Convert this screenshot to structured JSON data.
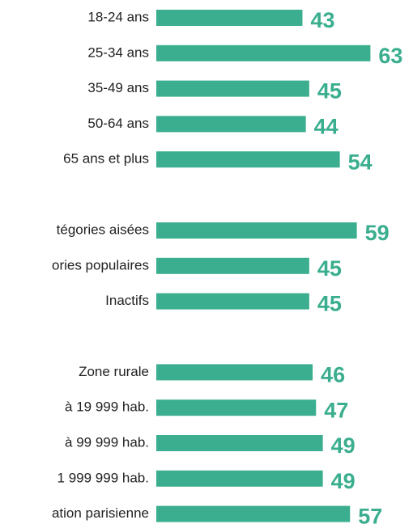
{
  "chart_data": {
    "type": "bar",
    "orientation": "horizontal",
    "color": "#3aae8e",
    "label_color": "#3aae8e",
    "xlim": [
      0,
      66
    ],
    "groups": [
      {
        "categories": [
          "18-24 ans",
          "25-34 ans",
          "35-49 ans",
          "50-64 ans",
          "65 ans et plus"
        ],
        "values": [
          43,
          63,
          45,
          44,
          54
        ]
      },
      {
        "categories": [
          "tégories aisées",
          "ories populaires",
          "Inactifs"
        ],
        "values": [
          59,
          45,
          45
        ]
      },
      {
        "categories": [
          "Zone rurale",
          "à 19 999 hab.",
          "à 99 999 hab.",
          "1 999 999 hab.",
          "ation parisienne"
        ],
        "values": [
          46,
          47,
          49,
          49,
          57
        ]
      }
    ]
  }
}
